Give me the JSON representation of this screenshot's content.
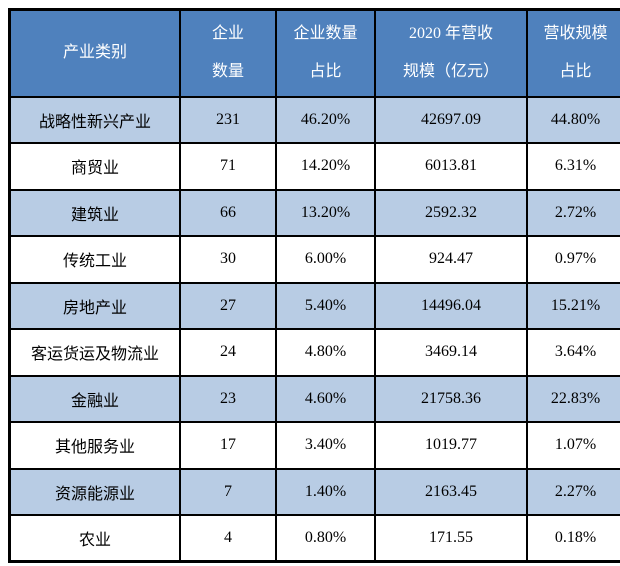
{
  "colors": {
    "header_bg": "#4f81bd",
    "header_text": "#ffffff",
    "row_alt_bg": "#b8cce4",
    "row_bg": "#ffffff",
    "body_text": "#000000",
    "border": "#000000"
  },
  "table": {
    "columns": [
      {
        "id": "category",
        "lines": [
          "产业类别"
        ]
      },
      {
        "id": "enterprise-count",
        "lines": [
          "企业",
          "数量"
        ]
      },
      {
        "id": "enterprise-count-share",
        "lines": [
          "企业数量",
          "占比"
        ]
      },
      {
        "id": "revenue-2020",
        "lines": [
          "2020 年营收",
          "规模（亿元）"
        ]
      },
      {
        "id": "revenue-share",
        "lines": [
          "营收规模",
          "占比"
        ]
      }
    ],
    "rows": [
      [
        "战略性新兴产业",
        "231",
        "46.20%",
        "42697.09",
        "44.80%"
      ],
      [
        "商贸业",
        "71",
        "14.20%",
        "6013.81",
        "6.31%"
      ],
      [
        "建筑业",
        "66",
        "13.20%",
        "2592.32",
        "2.72%"
      ],
      [
        "传统工业",
        "30",
        "6.00%",
        "924.47",
        "0.97%"
      ],
      [
        "房地产业",
        "27",
        "5.40%",
        "14496.04",
        "15.21%"
      ],
      [
        "客运货运及物流业",
        "24",
        "4.80%",
        "3469.14",
        "3.64%"
      ],
      [
        "金融业",
        "23",
        "4.60%",
        "21758.36",
        "22.83%"
      ],
      [
        "其他服务业",
        "17",
        "3.40%",
        "1019.77",
        "1.07%"
      ],
      [
        "资源能源业",
        "7",
        "1.40%",
        "2163.45",
        "2.27%"
      ],
      [
        "农业",
        "4",
        "0.80%",
        "171.55",
        "0.18%"
      ]
    ]
  }
}
